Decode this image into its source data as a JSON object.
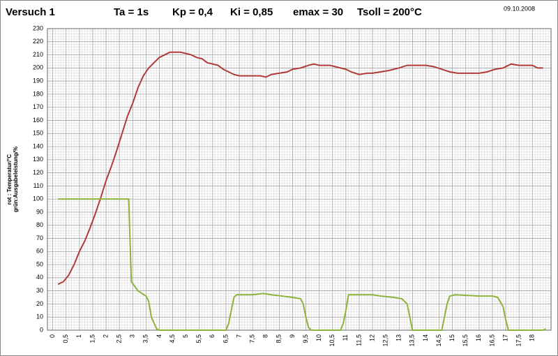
{
  "chart_data": {
    "type": "line",
    "title": "Versuch 1",
    "annotations": [
      "Ta = 1s",
      "Kp = 0,4",
      "Ki = 0,85",
      "emax = 30",
      "Tsoll = 200°C"
    ],
    "date": "09.10.2008",
    "y_label": [
      "rot : Temperatur/°C",
      "grün:Ausgabeleistung/%"
    ],
    "xlim": [
      -0.2,
      18.7
    ],
    "ylim": [
      0,
      230
    ],
    "yticks": [
      0,
      10,
      20,
      30,
      40,
      50,
      60,
      70,
      80,
      90,
      100,
      110,
      120,
      130,
      140,
      150,
      160,
      170,
      180,
      190,
      200,
      210,
      220,
      230
    ],
    "xticks": [
      0,
      {
        "value": 0.5,
        "label": "0,5"
      },
      1,
      {
        "value": 1.5,
        "label": "1,5"
      },
      2,
      {
        "value": 2.5,
        "label": "2,5"
      },
      3,
      {
        "value": 3.5,
        "label": "3,5"
      },
      4,
      {
        "value": 4.5,
        "label": "4,5"
      },
      5,
      {
        "value": 5.5,
        "label": "5,5"
      },
      6,
      {
        "value": 6.5,
        "label": "6,5"
      },
      7,
      {
        "value": 7.5,
        "label": "7,5"
      },
      8,
      {
        "value": 8.5,
        "label": "8,5"
      },
      9,
      {
        "value": 9.5,
        "label": "9,5"
      },
      10,
      {
        "value": 10.5,
        "label": "10,5"
      },
      11,
      {
        "value": 11.5,
        "label": "11,5"
      },
      12,
      {
        "value": 12.5,
        "label": "12,5"
      },
      13,
      {
        "value": 13.5,
        "label": "13,5"
      },
      14,
      {
        "value": 14.5,
        "label": "14,5"
      },
      15,
      {
        "value": 15.5,
        "label": "15,5"
      },
      16,
      {
        "value": 16.5,
        "label": "16,5"
      },
      17,
      {
        "value": 17.5,
        "label": "17,5"
      },
      18
    ],
    "grid": true,
    "series": [
      {
        "color": "#b03a3a",
        "x": [
          0.2,
          0.4,
          0.6,
          0.8,
          1.0,
          1.2,
          1.4,
          1.6,
          1.8,
          2.0,
          2.2,
          2.4,
          2.6,
          2.8,
          3.0,
          3.2,
          3.4,
          3.6,
          3.8,
          4.0,
          4.2,
          4.4,
          4.6,
          4.8,
          5.0,
          5.2,
          5.4,
          5.6,
          5.8,
          6.0,
          6.2,
          6.4,
          6.6,
          6.8,
          7.0,
          7.5,
          7.8,
          8.0,
          8.2,
          8.5,
          8.8,
          9.0,
          9.3,
          9.6,
          9.8,
          10.0,
          10.4,
          10.8,
          11.0,
          11.2,
          11.5,
          11.8,
          12.0,
          12.3,
          12.6,
          13.0,
          13.3,
          13.6,
          14.0,
          14.3,
          14.6,
          14.9,
          15.2,
          15.6,
          16.0,
          16.3,
          16.6,
          16.9,
          17.2,
          17.5,
          17.8,
          18.0,
          18.2,
          18.4
        ],
        "values": [
          35,
          37,
          42,
          50,
          60,
          68,
          78,
          89,
          101,
          114,
          125,
          137,
          150,
          163,
          173,
          185,
          194,
          200,
          204,
          208,
          210,
          212,
          212,
          212,
          211,
          210,
          208,
          207,
          204,
          203,
          202,
          199,
          197,
          195,
          194,
          194,
          194,
          193,
          195,
          196,
          197,
          199,
          200,
          202,
          203,
          202,
          202,
          200,
          199,
          197,
          195,
          196,
          196,
          197,
          198,
          200,
          202,
          202,
          202,
          201,
          199,
          197,
          196,
          196,
          196,
          197,
          199,
          200,
          203,
          202,
          202,
          202,
          200,
          200
        ]
      },
      {
        "color": "#8db33a",
        "x": [
          0.2,
          2.85,
          2.95,
          3.2,
          3.5,
          3.6,
          3.7,
          3.9,
          4.0,
          6.5,
          6.6,
          6.7,
          6.8,
          6.9,
          7.5,
          7.9,
          8.2,
          8.6,
          9.0,
          9.3,
          9.4,
          9.5,
          9.6,
          9.7,
          10.8,
          10.9,
          11.0,
          11.1,
          12.0,
          12.3,
          12.8,
          13.1,
          13.3,
          13.4,
          13.5,
          14.6,
          14.7,
          14.8,
          14.9,
          15.1,
          16.0,
          16.5,
          16.7,
          16.9,
          17.0,
          17.1,
          18.4,
          18.5
        ],
        "values": [
          100,
          100,
          37,
          30,
          26,
          22,
          10,
          1,
          0,
          0,
          5,
          15,
          25,
          27,
          27,
          28,
          27,
          26,
          25,
          24,
          20,
          10,
          2,
          0,
          0,
          5,
          15,
          27,
          27,
          26,
          25,
          24,
          20,
          10,
          0,
          0,
          10,
          20,
          26,
          27,
          26,
          26,
          25,
          18,
          8,
          0,
          0,
          1
        ]
      }
    ]
  }
}
